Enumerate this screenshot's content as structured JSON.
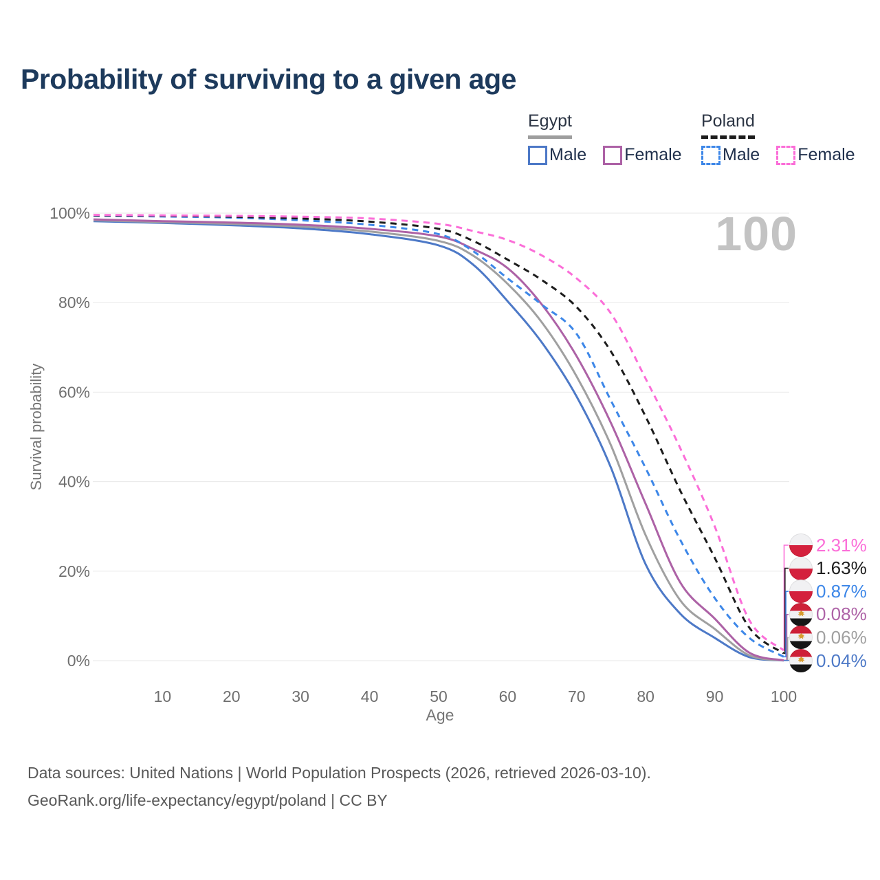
{
  "title": "Probability of surviving to a given age",
  "watermark": "100",
  "legend": {
    "groups": [
      {
        "label": "Egypt",
        "underline_color": "#9e9e9e",
        "underline_style": "solid",
        "items": [
          {
            "label": "Male",
            "color": "#4d79c7",
            "style": "solid"
          },
          {
            "label": "Female",
            "color": "#ad62a6",
            "style": "solid"
          }
        ]
      },
      {
        "label": "Poland",
        "underline_color": "#1c1c1c",
        "underline_style": "dashed",
        "items": [
          {
            "label": "Male",
            "color": "#3d87e8",
            "style": "dashed"
          },
          {
            "label": "Female",
            "color": "#fb6ed8",
            "style": "dashed"
          }
        ]
      }
    ]
  },
  "chart_data": {
    "type": "line",
    "title": "Probability of surviving to a given age",
    "xlabel": "Age",
    "ylabel": "Survival probability",
    "xlim": [
      0,
      100
    ],
    "ylim": [
      0,
      100
    ],
    "grid": "horizontal",
    "legend_position": "top-right",
    "x_ticks": [
      10,
      20,
      30,
      40,
      50,
      60,
      70,
      80,
      90,
      100
    ],
    "y_ticks": [
      0,
      20,
      40,
      60,
      80,
      100
    ],
    "y_tick_labels": [
      "0%",
      "20%",
      "40%",
      "60%",
      "80%",
      "100%"
    ],
    "x": [
      0,
      10,
      20,
      30,
      40,
      50,
      55,
      60,
      65,
      70,
      75,
      80,
      85,
      90,
      95,
      100
    ],
    "series": [
      {
        "name": "Egypt Male",
        "color": "#4d79c7",
        "dash": false,
        "end_label": "0.04%",
        "values": [
          98.2,
          97.8,
          97.3,
          96.6,
          95.3,
          92.8,
          88.5,
          80.3,
          71.0,
          59.0,
          43.0,
          21.5,
          10.5,
          5.1,
          0.8,
          0.04
        ]
      },
      {
        "name": "Egypt All",
        "color": "#a0a0a0",
        "dash": false,
        "end_label": "0.06%",
        "values": [
          98.4,
          98.0,
          97.6,
          97.0,
          95.9,
          93.8,
          90.5,
          84.2,
          75.5,
          63.5,
          48.0,
          28.0,
          13.5,
          7.1,
          1.2,
          0.06
        ]
      },
      {
        "name": "Egypt Female",
        "color": "#ad62a6",
        "dash": false,
        "end_label": "0.08%",
        "values": [
          98.6,
          98.2,
          97.9,
          97.4,
          96.5,
          94.8,
          92.0,
          87.7,
          79.5,
          68.0,
          53.0,
          35.0,
          17.5,
          9.4,
          1.8,
          0.08
        ]
      },
      {
        "name": "Poland Male",
        "color": "#3d87e8",
        "dash": true,
        "end_label": "0.87%",
        "values": [
          99.4,
          99.25,
          99.0,
          98.4,
          97.4,
          95.3,
          91.5,
          85.4,
          79.5,
          73.0,
          58.0,
          43.0,
          27.0,
          14.0,
          5.1,
          0.87
        ]
      },
      {
        "name": "Poland All",
        "color": "#1c1c1c",
        "dash": true,
        "end_label": "1.63%",
        "values": [
          99.5,
          99.4,
          99.2,
          98.8,
          98.1,
          96.5,
          93.8,
          89.6,
          85.0,
          79.0,
          69.0,
          54.5,
          38.0,
          23.0,
          7.4,
          1.63
        ]
      },
      {
        "name": "Poland Female",
        "color": "#fb6ed8",
        "dash": true,
        "end_label": "2.31%",
        "values": [
          99.6,
          99.5,
          99.4,
          99.2,
          98.8,
          97.6,
          96.0,
          94.0,
          90.5,
          85.4,
          77.5,
          63.0,
          47.5,
          30.0,
          9.1,
          2.31
        ]
      }
    ]
  },
  "callouts": [
    {
      "series": "Poland Female",
      "label": "2.31%",
      "color": "#fb6ed8",
      "flag": "poland"
    },
    {
      "series": "Poland All",
      "label": "1.63%",
      "color": "#1c1c1c",
      "flag": "poland"
    },
    {
      "series": "Poland Male",
      "label": "0.87%",
      "color": "#3d87e8",
      "flag": "poland"
    },
    {
      "series": "Egypt Female",
      "label": "0.08%",
      "color": "#ad62a6",
      "flag": "egypt"
    },
    {
      "series": "Egypt All",
      "label": "0.06%",
      "color": "#a0a0a0",
      "flag": "egypt"
    },
    {
      "series": "Egypt Male",
      "label": "0.04%",
      "color": "#4d79c7",
      "flag": "egypt"
    }
  ],
  "footer": {
    "line1": "Data sources: United Nations | World Population Prospects (2026, retrieved 2026-03-10).",
    "line2": "GeoRank.org/life-expectancy/egypt/poland | CC BY"
  }
}
